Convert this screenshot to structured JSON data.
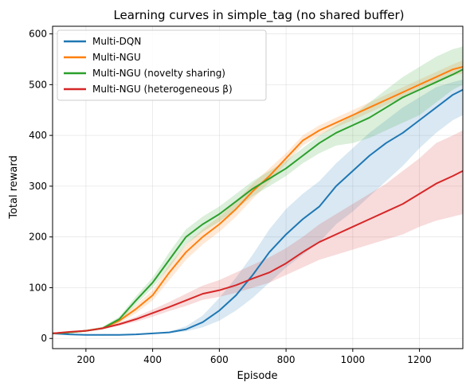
{
  "chart_data": {
    "type": "line",
    "title": "Learning curves in simple_tag (no shared buffer)",
    "xlabel": "Episode",
    "ylabel": "Total reward",
    "xlim": [
      100,
      1330
    ],
    "ylim": [
      -20,
      615
    ],
    "xticks": [
      200,
      400,
      600,
      800,
      1000,
      1200
    ],
    "yticks": [
      0,
      100,
      200,
      300,
      400,
      500,
      600
    ],
    "grid": true,
    "legend_position": "top-left",
    "x": [
      100,
      150,
      200,
      250,
      300,
      350,
      400,
      450,
      500,
      550,
      600,
      650,
      700,
      750,
      800,
      850,
      900,
      950,
      1000,
      1050,
      1100,
      1150,
      1200,
      1250,
      1300,
      1330
    ],
    "series": [
      {
        "name": "Multi-DQN",
        "color": "#1f77b4",
        "values": [
          10,
          8,
          7,
          7,
          7,
          8,
          10,
          12,
          18,
          32,
          55,
          85,
          125,
          170,
          205,
          235,
          260,
          300,
          330,
          360,
          385,
          405,
          430,
          455,
          480,
          490
        ],
        "lower": [
          10,
          8,
          7,
          7,
          7,
          8,
          9,
          11,
          14,
          22,
          35,
          55,
          80,
          110,
          140,
          165,
          190,
          225,
          250,
          280,
          310,
          340,
          375,
          405,
          430,
          440
        ],
        "upper": [
          10,
          8,
          7,
          7,
          7,
          8,
          11,
          14,
          24,
          45,
          80,
          120,
          165,
          215,
          255,
          285,
          310,
          345,
          375,
          405,
          430,
          455,
          475,
          495,
          505,
          510
        ]
      },
      {
        "name": "Multi-NGU",
        "color": "#ff7f0e",
        "values": [
          10,
          12,
          15,
          20,
          35,
          58,
          85,
          130,
          170,
          200,
          225,
          255,
          290,
          320,
          355,
          390,
          410,
          425,
          440,
          455,
          470,
          485,
          500,
          515,
          530,
          535
        ],
        "lower": [
          10,
          11,
          14,
          18,
          30,
          50,
          75,
          115,
          155,
          185,
          210,
          240,
          275,
          308,
          345,
          380,
          400,
          416,
          430,
          445,
          460,
          475,
          490,
          505,
          518,
          522
        ],
        "upper": [
          10,
          13,
          17,
          23,
          40,
          66,
          95,
          145,
          185,
          215,
          240,
          270,
          305,
          335,
          365,
          400,
          420,
          435,
          450,
          465,
          480,
          495,
          510,
          525,
          540,
          548
        ]
      },
      {
        "name": "Multi-NGU (novelty sharing)",
        "color": "#2ca02c",
        "values": [
          10,
          12,
          15,
          20,
          38,
          75,
          110,
          155,
          200,
          225,
          245,
          270,
          295,
          315,
          335,
          360,
          385,
          405,
          420,
          435,
          455,
          475,
          490,
          505,
          520,
          530
        ],
        "lower": [
          10,
          11,
          13,
          18,
          33,
          67,
          100,
          140,
          185,
          210,
          230,
          255,
          280,
          300,
          320,
          345,
          365,
          380,
          385,
          395,
          410,
          425,
          440,
          465,
          490,
          500
        ],
        "upper": [
          10,
          13,
          17,
          23,
          43,
          83,
          120,
          170,
          215,
          240,
          260,
          285,
          310,
          330,
          350,
          375,
          400,
          420,
          440,
          465,
          490,
          515,
          535,
          555,
          570,
          575
        ]
      },
      {
        "name": "Multi-NGU (heterogeneous β)",
        "color": "#d62728",
        "values": [
          10,
          13,
          15,
          20,
          28,
          38,
          50,
          62,
          75,
          88,
          95,
          105,
          118,
          130,
          148,
          170,
          190,
          205,
          220,
          235,
          250,
          265,
          285,
          305,
          320,
          330
        ],
        "lower": [
          10,
          12,
          14,
          18,
          25,
          33,
          43,
          54,
          64,
          76,
          82,
          90,
          100,
          110,
          125,
          140,
          155,
          165,
          175,
          185,
          195,
          205,
          220,
          232,
          240,
          245
        ],
        "upper": [
          10,
          14,
          17,
          22,
          31,
          43,
          57,
          72,
          88,
          104,
          115,
          130,
          145,
          160,
          178,
          200,
          225,
          245,
          265,
          285,
          305,
          330,
          355,
          385,
          400,
          410
        ]
      }
    ]
  }
}
